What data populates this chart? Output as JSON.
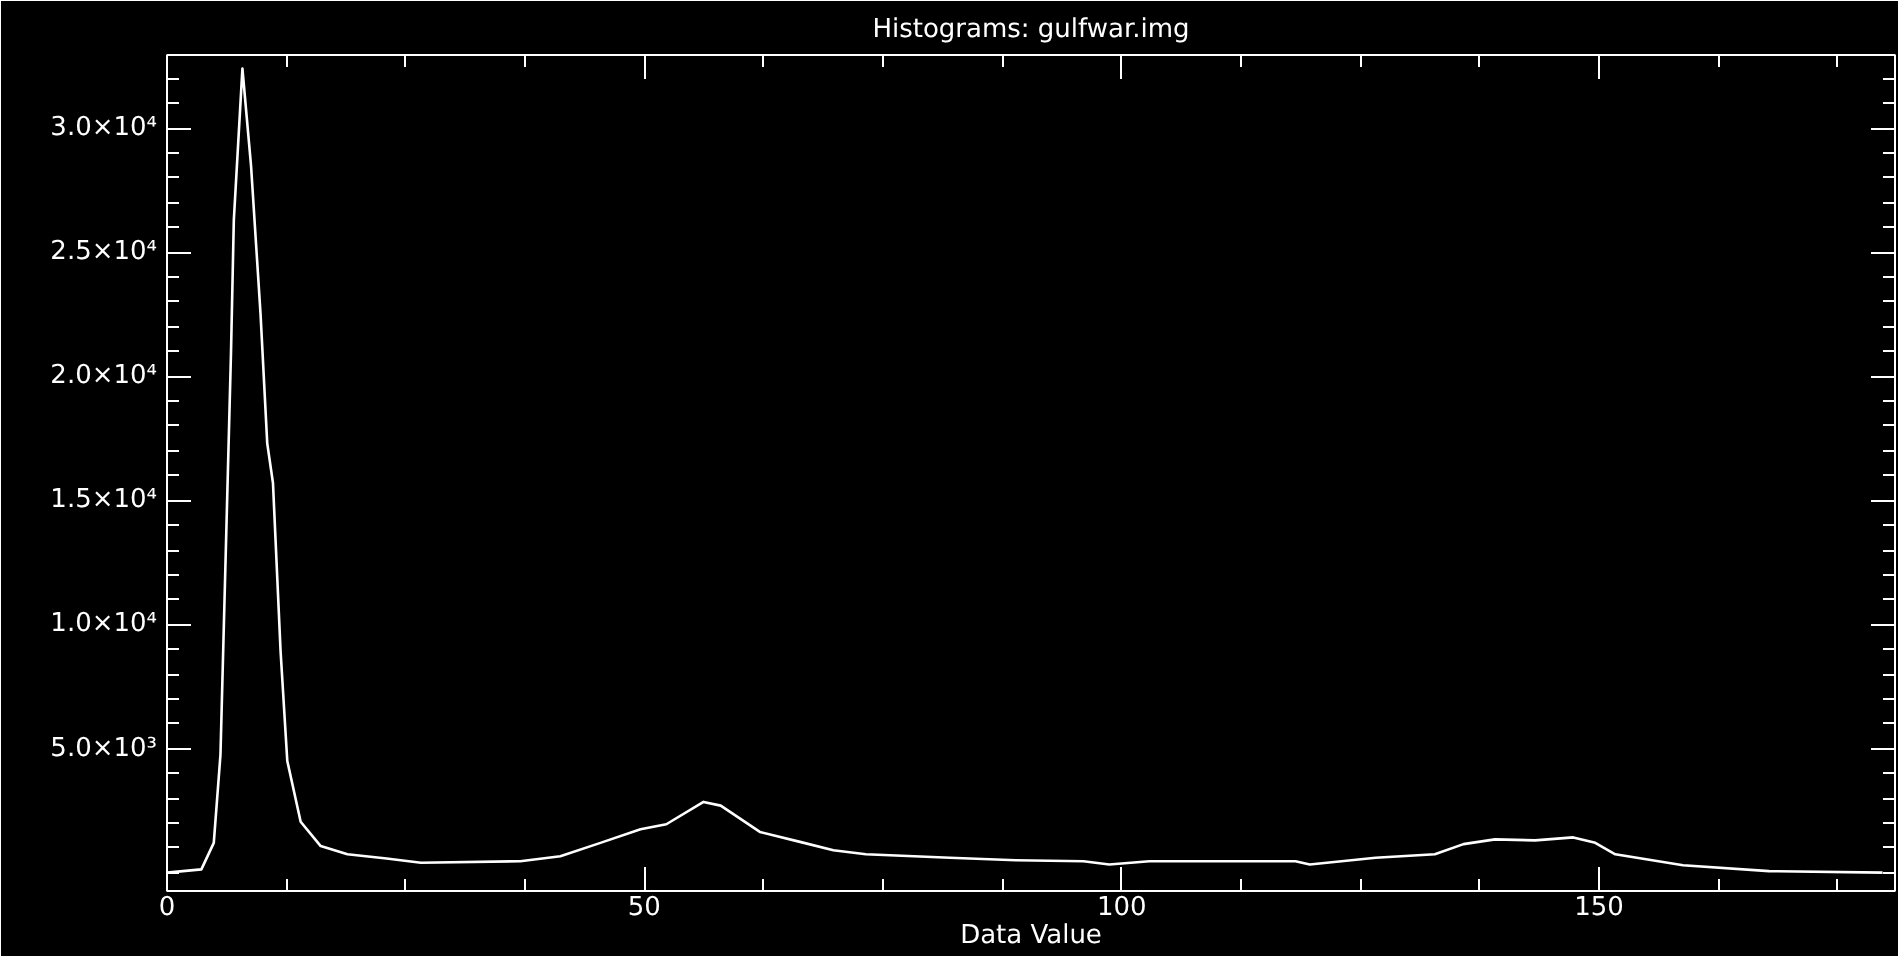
{
  "chart_data": {
    "type": "line",
    "title": "Histograms: gulfwar.img",
    "xlabel": "Data Value",
    "x": [
      0,
      3.6,
      4.9,
      5.6,
      6.7,
      7.0,
      7.9,
      8.8,
      9.8,
      10.5,
      11.1,
      11.9,
      12.6,
      14.0,
      16.1,
      18.9,
      23.0,
      26.6,
      37.0,
      41.2,
      45.4,
      49.6,
      52.3,
      56.2,
      58.0,
      62.1,
      66.3,
      69.8,
      73.2,
      82.0,
      88.9,
      96.0,
      98.7,
      102.9,
      118.2,
      119.7,
      126.6,
      132.8,
      135.8,
      139.1,
      143.3,
      147.3,
      149.6,
      151.7,
      158.8,
      167.8,
      179.7
    ],
    "values": [
      0,
      130,
      1200,
      4750,
      20900,
      26300,
      32400,
      28500,
      22500,
      17300,
      15700,
      8900,
      4500,
      2050,
      1070,
      740,
      570,
      400,
      460,
      660,
      1200,
      1750,
      1950,
      2850,
      2700,
      1640,
      1240,
      900,
      740,
      600,
      500,
      460,
      330,
      460,
      460,
      330,
      600,
      740,
      1150,
      1340,
      1300,
      1420,
      1200,
      740,
      300,
      60,
      0
    ],
    "color": "#ffffff",
    "xlim": [
      0,
      181
    ],
    "ylim": [
      -740,
      32950
    ],
    "xticks": [
      0,
      50,
      100,
      150
    ],
    "yticks": [
      {
        "value": 5000,
        "label": "5.0×10³"
      },
      {
        "value": 10000,
        "label": "1.0×10⁴"
      },
      {
        "value": 15000,
        "label": "1.5×10⁴"
      },
      {
        "value": 20000,
        "label": "2.0×10⁴"
      },
      {
        "value": 25000,
        "label": "2.5×10⁴"
      },
      {
        "value": 30000,
        "label": "3.0×10⁴"
      }
    ]
  }
}
